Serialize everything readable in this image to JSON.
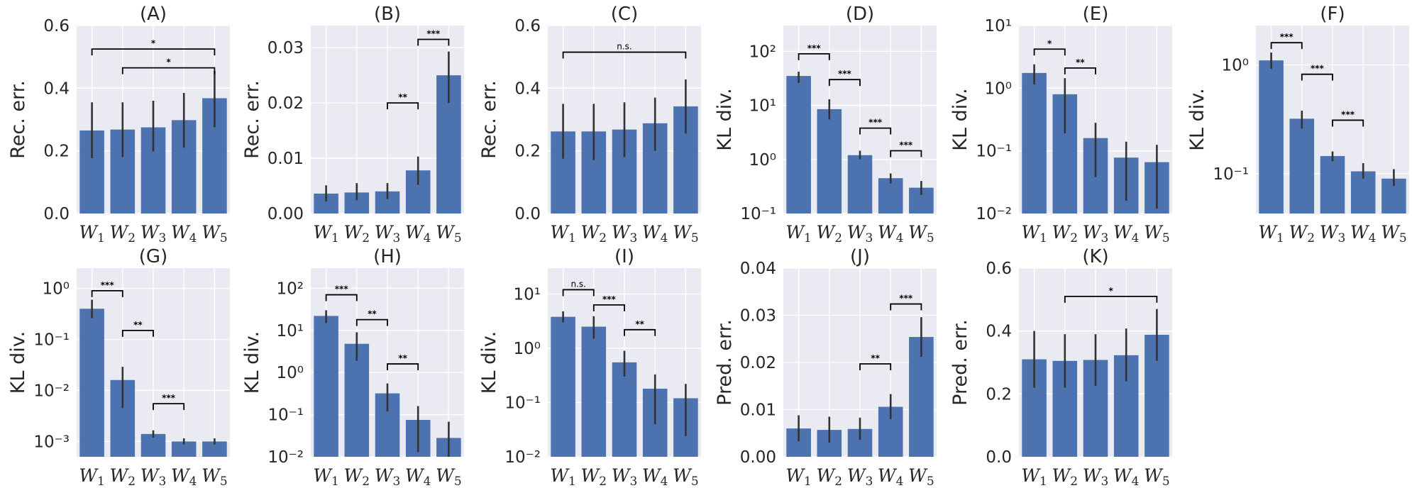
{
  "chart_data": [
    {
      "id": "A",
      "title": "(A)",
      "type": "bar",
      "scale": "linear",
      "ylabel": "Rec. err.",
      "ylim": [
        0,
        0.6
      ],
      "yticks": [
        0,
        0.2,
        0.4,
        0.6
      ],
      "yticklabels": [
        "0.0",
        "0.2",
        "0.4",
        "0.6"
      ],
      "values": [
        0.265,
        0.268,
        0.275,
        0.298,
        0.368
      ],
      "err_low": [
        0.177,
        0.18,
        0.198,
        0.21,
        0.275
      ],
      "err_high": [
        0.355,
        0.355,
        0.36,
        0.385,
        0.455
      ],
      "brackets": [
        {
          "from": 0,
          "to": 4,
          "y": 0.525,
          "label": "*"
        },
        {
          "from": 1,
          "to": 4,
          "y": 0.465,
          "label": "*"
        }
      ]
    },
    {
      "id": "B",
      "title": "(B)",
      "type": "bar",
      "scale": "linear",
      "ylabel": "Rec. err.",
      "ylim": [
        0,
        0.034
      ],
      "yticks": [
        0,
        0.01,
        0.02,
        0.03
      ],
      "yticklabels": [
        "0.00",
        "0.01",
        "0.02",
        "0.03"
      ],
      "values": [
        0.0036,
        0.0038,
        0.004,
        0.0078,
        0.025
      ],
      "err_low": [
        0.0022,
        0.0024,
        0.0026,
        0.0052,
        0.02
      ],
      "err_high": [
        0.0051,
        0.0055,
        0.0055,
        0.0103,
        0.0293
      ],
      "brackets": [
        {
          "from": 2,
          "to": 3,
          "y": 0.02,
          "label": "**"
        },
        {
          "from": 3,
          "to": 4,
          "y": 0.0315,
          "label": "***"
        }
      ]
    },
    {
      "id": "C",
      "title": "(C)",
      "type": "bar",
      "scale": "linear",
      "ylabel": "Rec. err.",
      "ylim": [
        0,
        0.6
      ],
      "yticks": [
        0,
        0.2,
        0.4,
        0.6
      ],
      "yticklabels": [
        "0.0",
        "0.2",
        "0.4",
        "0.6"
      ],
      "values": [
        0.262,
        0.262,
        0.268,
        0.288,
        0.342
      ],
      "err_low": [
        0.175,
        0.17,
        0.18,
        0.2,
        0.255
      ],
      "err_high": [
        0.35,
        0.35,
        0.355,
        0.37,
        0.428
      ],
      "brackets": [
        {
          "from": 0,
          "to": 4,
          "y": 0.515,
          "label": "n.s."
        }
      ]
    },
    {
      "id": "D",
      "title": "(D)",
      "type": "bar",
      "scale": "log",
      "ylabel": "KL div.",
      "ylim": [
        0.1,
        300
      ],
      "yticks": [
        0.1,
        1,
        10,
        100
      ],
      "yticklabels": [
        "10⁻¹",
        "10⁰",
        "10¹",
        "10²"
      ],
      "values": [
        35,
        8.5,
        1.2,
        0.45,
        0.3
      ],
      "err_low": [
        26,
        5.5,
        1.0,
        0.36,
        0.22
      ],
      "err_high": [
        42,
        13,
        1.45,
        0.55,
        0.4
      ],
      "brackets": [
        {
          "from": 0,
          "to": 1,
          "y": 90,
          "label": "***"
        },
        {
          "from": 1,
          "to": 2,
          "y": 30,
          "label": "***"
        },
        {
          "from": 2,
          "to": 3,
          "y": 3.8,
          "label": "***"
        },
        {
          "from": 3,
          "to": 4,
          "y": 1.45,
          "label": "***"
        }
      ]
    },
    {
      "id": "E",
      "title": "(E)",
      "type": "bar",
      "scale": "log",
      "ylabel": "KL div.",
      "ylim": [
        0.01,
        10
      ],
      "yticks": [
        0.01,
        0.1,
        1,
        10
      ],
      "yticklabels": [
        "10⁻²",
        "10⁻¹",
        "10⁰",
        "10¹"
      ],
      "values": [
        1.75,
        0.8,
        0.16,
        0.078,
        0.066
      ],
      "err_low": [
        1.15,
        0.19,
        0.038,
        0.016,
        0.012
      ],
      "err_high": [
        2.4,
        1.45,
        0.28,
        0.14,
        0.125
      ],
      "brackets": [
        {
          "from": 0,
          "to": 1,
          "y": 4.2,
          "label": "*"
        },
        {
          "from": 1,
          "to": 2,
          "y": 2.1,
          "label": "**"
        }
      ]
    },
    {
      "id": "F",
      "title": "(F)",
      "type": "bar",
      "scale": "log",
      "ylabel": "KL div.",
      "ylim": [
        0.043,
        2.3
      ],
      "yticks": [
        0.1,
        1
      ],
      "yticklabels": [
        "10⁻¹",
        "10⁰"
      ],
      "values": [
        1.1,
        0.32,
        0.145,
        0.105,
        0.09
      ],
      "err_low": [
        0.92,
        0.26,
        0.13,
        0.09,
        0.077
      ],
      "err_high": [
        1.3,
        0.38,
        0.16,
        0.125,
        0.11
      ],
      "brackets": [
        {
          "from": 0,
          "to": 1,
          "y": 1.6,
          "label": "***"
        },
        {
          "from": 1,
          "to": 2,
          "y": 0.82,
          "label": "***"
        },
        {
          "from": 2,
          "to": 3,
          "y": 0.31,
          "label": "***"
        }
      ]
    },
    {
      "id": "G",
      "title": "(G)",
      "type": "bar",
      "scale": "log",
      "ylabel": "KL div.",
      "ylim": [
        0.0005,
        2.5
      ],
      "yticks": [
        0.001,
        0.01,
        0.1,
        1
      ],
      "yticklabels": [
        "10⁻³",
        "10⁻²",
        "10⁻¹",
        "10⁰"
      ],
      "values": [
        0.4,
        0.016,
        0.0014,
        0.001,
        0.001
      ],
      "err_low": [
        0.26,
        0.0045,
        0.00118,
        0.00087,
        0.00087
      ],
      "err_high": [
        0.6,
        0.029,
        0.00165,
        0.00115,
        0.00115
      ],
      "brackets": [
        {
          "from": 0,
          "to": 1,
          "y": 0.9,
          "label": "***"
        },
        {
          "from": 1,
          "to": 2,
          "y": 0.15,
          "label": "**"
        },
        {
          "from": 2,
          "to": 3,
          "y": 0.0055,
          "label": "***"
        }
      ]
    },
    {
      "id": "H",
      "title": "(H)",
      "type": "bar",
      "scale": "log",
      "ylabel": "KL div.",
      "ylim": [
        0.01,
        300
      ],
      "yticks": [
        0.01,
        0.1,
        1,
        10,
        100
      ],
      "yticklabels": [
        "10⁻²",
        "10⁻¹",
        "10⁰",
        "10¹",
        "10²"
      ],
      "values": [
        22,
        4.8,
        0.32,
        0.075,
        0.028
      ],
      "err_low": [
        15,
        1.9,
        0.12,
        0.013,
        0.004
      ],
      "err_high": [
        30,
        9.0,
        0.55,
        0.16,
        0.068
      ],
      "brackets": [
        {
          "from": 0,
          "to": 1,
          "y": 70,
          "label": "***"
        },
        {
          "from": 1,
          "to": 2,
          "y": 18,
          "label": "**"
        },
        {
          "from": 2,
          "to": 3,
          "y": 1.6,
          "label": "**"
        }
      ]
    },
    {
      "id": "I",
      "title": "(I)",
      "type": "bar",
      "scale": "log",
      "ylabel": "KL div.",
      "ylim": [
        0.01,
        30
      ],
      "yticks": [
        0.01,
        0.1,
        1,
        10
      ],
      "yticklabels": [
        "10⁻²",
        "10⁻¹",
        "10⁰",
        "10¹"
      ],
      "values": [
        3.8,
        2.5,
        0.55,
        0.18,
        0.12
      ],
      "err_low": [
        3.0,
        1.5,
        0.3,
        0.04,
        0.024
      ],
      "err_high": [
        4.8,
        3.9,
        0.9,
        0.33,
        0.22
      ],
      "brackets": [
        {
          "from": 0,
          "to": 1,
          "y": 12,
          "label": "n.s."
        },
        {
          "from": 1,
          "to": 2,
          "y": 6.3,
          "label": "***"
        },
        {
          "from": 2,
          "to": 3,
          "y": 2.2,
          "label": "**"
        }
      ]
    },
    {
      "id": "J",
      "title": "(J)",
      "type": "bar",
      "scale": "linear",
      "ylabel": "Pred. err.",
      "ylim": [
        0,
        0.04
      ],
      "yticks": [
        0,
        0.01,
        0.02,
        0.03,
        0.04
      ],
      "yticklabels": [
        "0.00",
        "0.01",
        "0.02",
        "0.03",
        "0.04"
      ],
      "values": [
        0.006,
        0.0057,
        0.0059,
        0.0106,
        0.0254
      ],
      "err_low": [
        0.0033,
        0.003,
        0.0036,
        0.008,
        0.0212
      ],
      "err_high": [
        0.0088,
        0.0085,
        0.0083,
        0.0133,
        0.0296
      ],
      "brackets": [
        {
          "from": 2,
          "to": 3,
          "y": 0.0197,
          "label": "**"
        },
        {
          "from": 3,
          "to": 4,
          "y": 0.0324,
          "label": "***"
        }
      ]
    },
    {
      "id": "K",
      "title": "(K)",
      "type": "bar",
      "scale": "linear",
      "ylabel": "Pred. err.",
      "ylim": [
        0,
        0.6
      ],
      "yticks": [
        0,
        0.2,
        0.4,
        0.6
      ],
      "yticklabels": [
        "0.0",
        "0.2",
        "0.4",
        "0.6"
      ],
      "values": [
        0.31,
        0.305,
        0.308,
        0.323,
        0.388
      ],
      "err_low": [
        0.22,
        0.22,
        0.225,
        0.24,
        0.305
      ],
      "err_high": [
        0.4,
        0.39,
        0.39,
        0.408,
        0.47
      ],
      "brackets": [
        {
          "from": 1,
          "to": 4,
          "y": 0.51,
          "label": "*"
        }
      ]
    }
  ],
  "x_categories": [
    {
      "base": "W",
      "sub": "1"
    },
    {
      "base": "W",
      "sub": "2"
    },
    {
      "base": "W",
      "sub": "3"
    },
    {
      "base": "W",
      "sub": "4"
    },
    {
      "base": "W",
      "sub": "5"
    }
  ],
  "colors": {
    "bar": "#4c72b0",
    "error": "#333333",
    "panel_bg": "#eaeaf2",
    "grid": "#ffffff"
  }
}
